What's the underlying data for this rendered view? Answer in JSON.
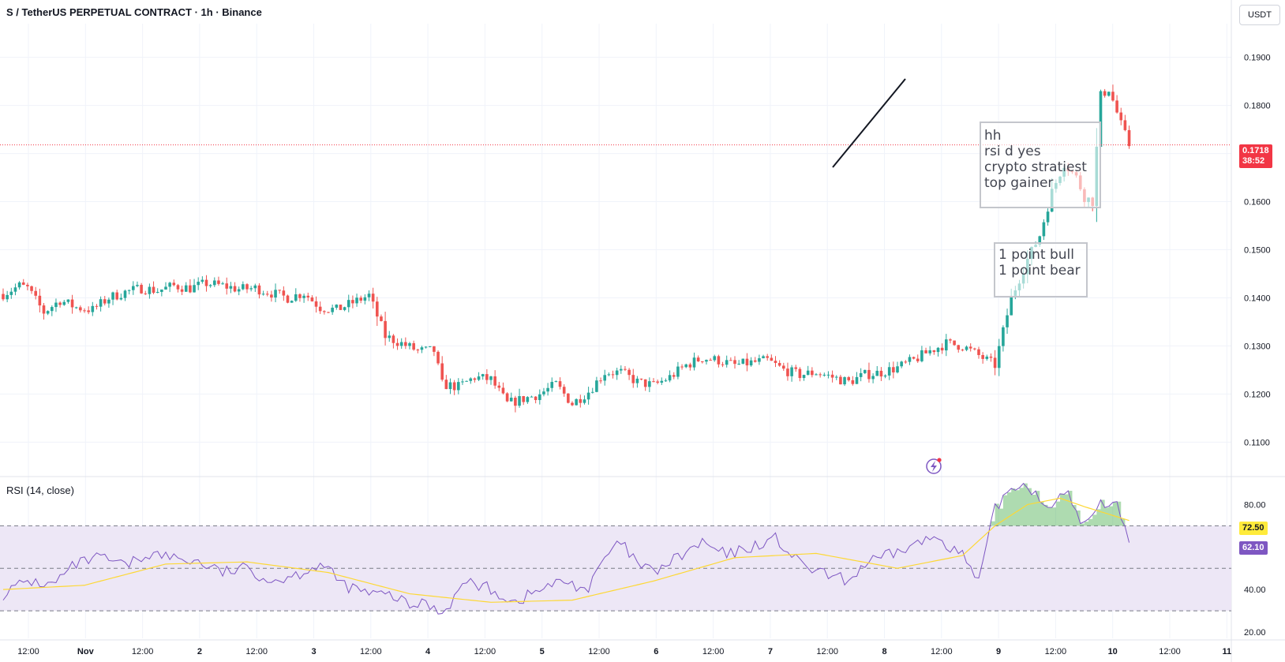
{
  "header": {
    "title": "S / TetherUS PERPETUAL CONTRACT · 1h · Binance",
    "currency": "USDT"
  },
  "price_axis": {
    "ticks": [
      "0.1900",
      "0.1800",
      "0.1700",
      "0.1600",
      "0.1500",
      "0.1400",
      "0.1300",
      "0.1200",
      "0.1100"
    ],
    "current_price": "0.1718",
    "countdown": "38:52"
  },
  "time_axis": {
    "ticks": [
      "12:00",
      "Nov",
      "12:00",
      "2",
      "12:00",
      "3",
      "12:00",
      "4",
      "12:00",
      "5",
      "12:00",
      "6",
      "12:00",
      "7",
      "12:00",
      "8",
      "12:00",
      "9",
      "12:00",
      "10",
      "12:00",
      "11"
    ]
  },
  "rsi": {
    "label": "RSI (14, close)",
    "ticks": [
      "80.00",
      "40.00",
      "20.00"
    ],
    "ma_value": "72.50",
    "rsi_value": "62.10"
  },
  "notes": {
    "box1": [
      "hh",
      "rsi d yes",
      "crypto stratiest",
      "top gainer"
    ],
    "box2": [
      "1 point bull",
      "1 point bear"
    ]
  },
  "colors": {
    "up": "#26a69a",
    "down": "#ef5350",
    "rsi_line": "#7e57c2",
    "rsi_ma": "#fdd835",
    "rsi_band": "#ede7f6"
  },
  "chart_data": {
    "type": "candlestick",
    "title": "S / TetherUS PERPETUAL CONTRACT · 1h · Binance",
    "interval": "1h",
    "ylim": [
      0.103,
      0.197
    ],
    "price_path": [
      [
        0,
        0.1408
      ],
      [
        4,
        0.1425
      ],
      [
        6,
        0.142
      ],
      [
        10,
        0.137
      ],
      [
        14,
        0.1395
      ],
      [
        18,
        0.138
      ],
      [
        22,
        0.1375
      ],
      [
        26,
        0.14
      ],
      [
        30,
        0.1412
      ],
      [
        34,
        0.142
      ],
      [
        38,
        0.1415
      ],
      [
        42,
        0.1425
      ],
      [
        46,
        0.142
      ],
      [
        50,
        0.143
      ],
      [
        54,
        0.1425
      ],
      [
        58,
        0.1418
      ],
      [
        62,
        0.142
      ],
      [
        66,
        0.141
      ],
      [
        70,
        0.14
      ],
      [
        74,
        0.141
      ],
      [
        78,
        0.138
      ],
      [
        82,
        0.1375
      ],
      [
        86,
        0.139
      ],
      [
        90,
        0.1405
      ],
      [
        94,
        0.132
      ],
      [
        98,
        0.1305
      ],
      [
        102,
        0.129
      ],
      [
        106,
        0.129
      ],
      [
        108,
        0.122
      ],
      [
        112,
        0.1215
      ],
      [
        116,
        0.1235
      ],
      [
        120,
        0.123
      ],
      [
        124,
        0.118
      ],
      [
        128,
        0.119
      ],
      [
        132,
        0.12
      ],
      [
        136,
        0.122
      ],
      [
        140,
        0.118
      ],
      [
        144,
        0.1205
      ],
      [
        148,
        0.1245
      ],
      [
        152,
        0.1245
      ],
      [
        156,
        0.1225
      ],
      [
        160,
        0.1218
      ],
      [
        164,
        0.1235
      ],
      [
        168,
        0.126
      ],
      [
        172,
        0.1275
      ],
      [
        176,
        0.127
      ],
      [
        180,
        0.126
      ],
      [
        184,
        0.1265
      ],
      [
        188,
        0.127
      ],
      [
        192,
        0.125
      ],
      [
        196,
        0.124
      ],
      [
        200,
        0.1245
      ],
      [
        204,
        0.1235
      ],
      [
        208,
        0.1225
      ],
      [
        212,
        0.124
      ],
      [
        216,
        0.1245
      ],
      [
        220,
        0.1255
      ],
      [
        224,
        0.127
      ],
      [
        228,
        0.129
      ],
      [
        232,
        0.1305
      ],
      [
        236,
        0.13
      ],
      [
        240,
        0.128
      ],
      [
        244,
        0.126
      ],
      [
        248,
        0.14
      ],
      [
        252,
        0.148
      ],
      [
        255,
        0.153
      ],
      [
        258,
        0.162
      ],
      [
        261,
        0.168
      ],
      [
        264,
        0.165
      ],
      [
        266,
        0.161
      ],
      [
        268,
        0.16
      ],
      [
        270,
        0.182
      ],
      [
        272,
        0.1835
      ],
      [
        275,
        0.176
      ],
      [
        277,
        0.1718
      ]
    ],
    "rsi_series": {
      "name": "RSI (14, close)",
      "last": 62.1,
      "overbought": 70,
      "oversold": 30,
      "midline": 50,
      "path": [
        [
          0,
          38
        ],
        [
          6,
          44
        ],
        [
          12,
          42
        ],
        [
          18,
          52
        ],
        [
          24,
          55
        ],
        [
          30,
          51
        ],
        [
          36,
          57
        ],
        [
          42,
          55
        ],
        [
          48,
          53
        ],
        [
          54,
          48
        ],
        [
          60,
          50
        ],
        [
          66,
          44
        ],
        [
          72,
          47
        ],
        [
          78,
          52
        ],
        [
          84,
          42
        ],
        [
          90,
          38
        ],
        [
          96,
          37
        ],
        [
          100,
          32
        ],
        [
          104,
          34
        ],
        [
          108,
          29
        ],
        [
          114,
          44
        ],
        [
          120,
          40
        ],
        [
          126,
          34
        ],
        [
          132,
          40
        ],
        [
          138,
          44
        ],
        [
          144,
          40
        ],
        [
          148,
          55
        ],
        [
          152,
          62
        ],
        [
          156,
          52
        ],
        [
          160,
          48
        ],
        [
          166,
          55
        ],
        [
          172,
          62
        ],
        [
          178,
          56
        ],
        [
          184,
          60
        ],
        [
          190,
          64
        ],
        [
          196,
          52
        ],
        [
          202,
          47
        ],
        [
          208,
          44
        ],
        [
          212,
          52
        ],
        [
          218,
          56
        ],
        [
          224,
          61
        ],
        [
          230,
          65
        ],
        [
          236,
          56
        ],
        [
          240,
          43
        ],
        [
          244,
          78
        ],
        [
          248,
          88
        ],
        [
          252,
          90
        ],
        [
          256,
          80
        ],
        [
          262,
          84
        ],
        [
          266,
          70
        ],
        [
          270,
          80
        ],
        [
          274,
          82
        ],
        [
          277,
          62.1
        ]
      ],
      "ma_path": [
        [
          0,
          40
        ],
        [
          20,
          42
        ],
        [
          40,
          52
        ],
        [
          60,
          53
        ],
        [
          80,
          48
        ],
        [
          100,
          38
        ],
        [
          120,
          34
        ],
        [
          140,
          35
        ],
        [
          160,
          44
        ],
        [
          180,
          55
        ],
        [
          200,
          57
        ],
        [
          220,
          50
        ],
        [
          236,
          56
        ],
        [
          244,
          70
        ],
        [
          252,
          80
        ],
        [
          260,
          83
        ],
        [
          266,
          79
        ],
        [
          277,
          72.5
        ]
      ]
    }
  }
}
